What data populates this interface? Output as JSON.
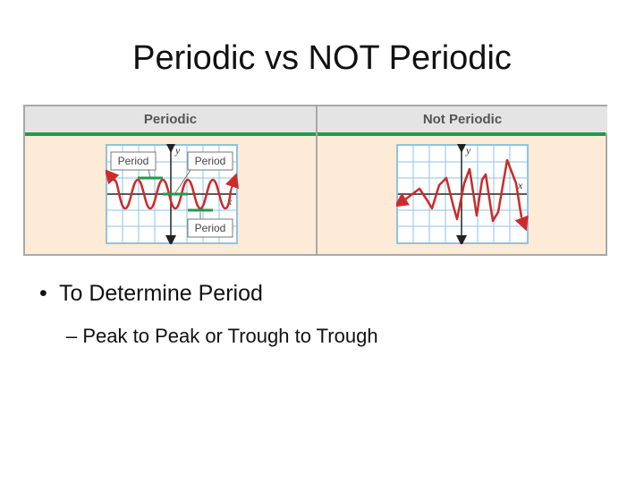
{
  "slide": {
    "title": "Periodic vs NOT Periodic",
    "bullet": "To Determine Period",
    "sub_bullet": "– Peak to Peak or Trough to Trough"
  },
  "figure": {
    "left_header": "Periodic",
    "right_header": "Not Periodic",
    "period_label": "Period",
    "x_axis_label": "x",
    "y_axis_label": "y",
    "colors": {
      "curve": "#cc2b2b",
      "period_marker": "#1f9b4c",
      "grid": "#8fc3e0",
      "header_bar": "#1f9b4c"
    }
  }
}
